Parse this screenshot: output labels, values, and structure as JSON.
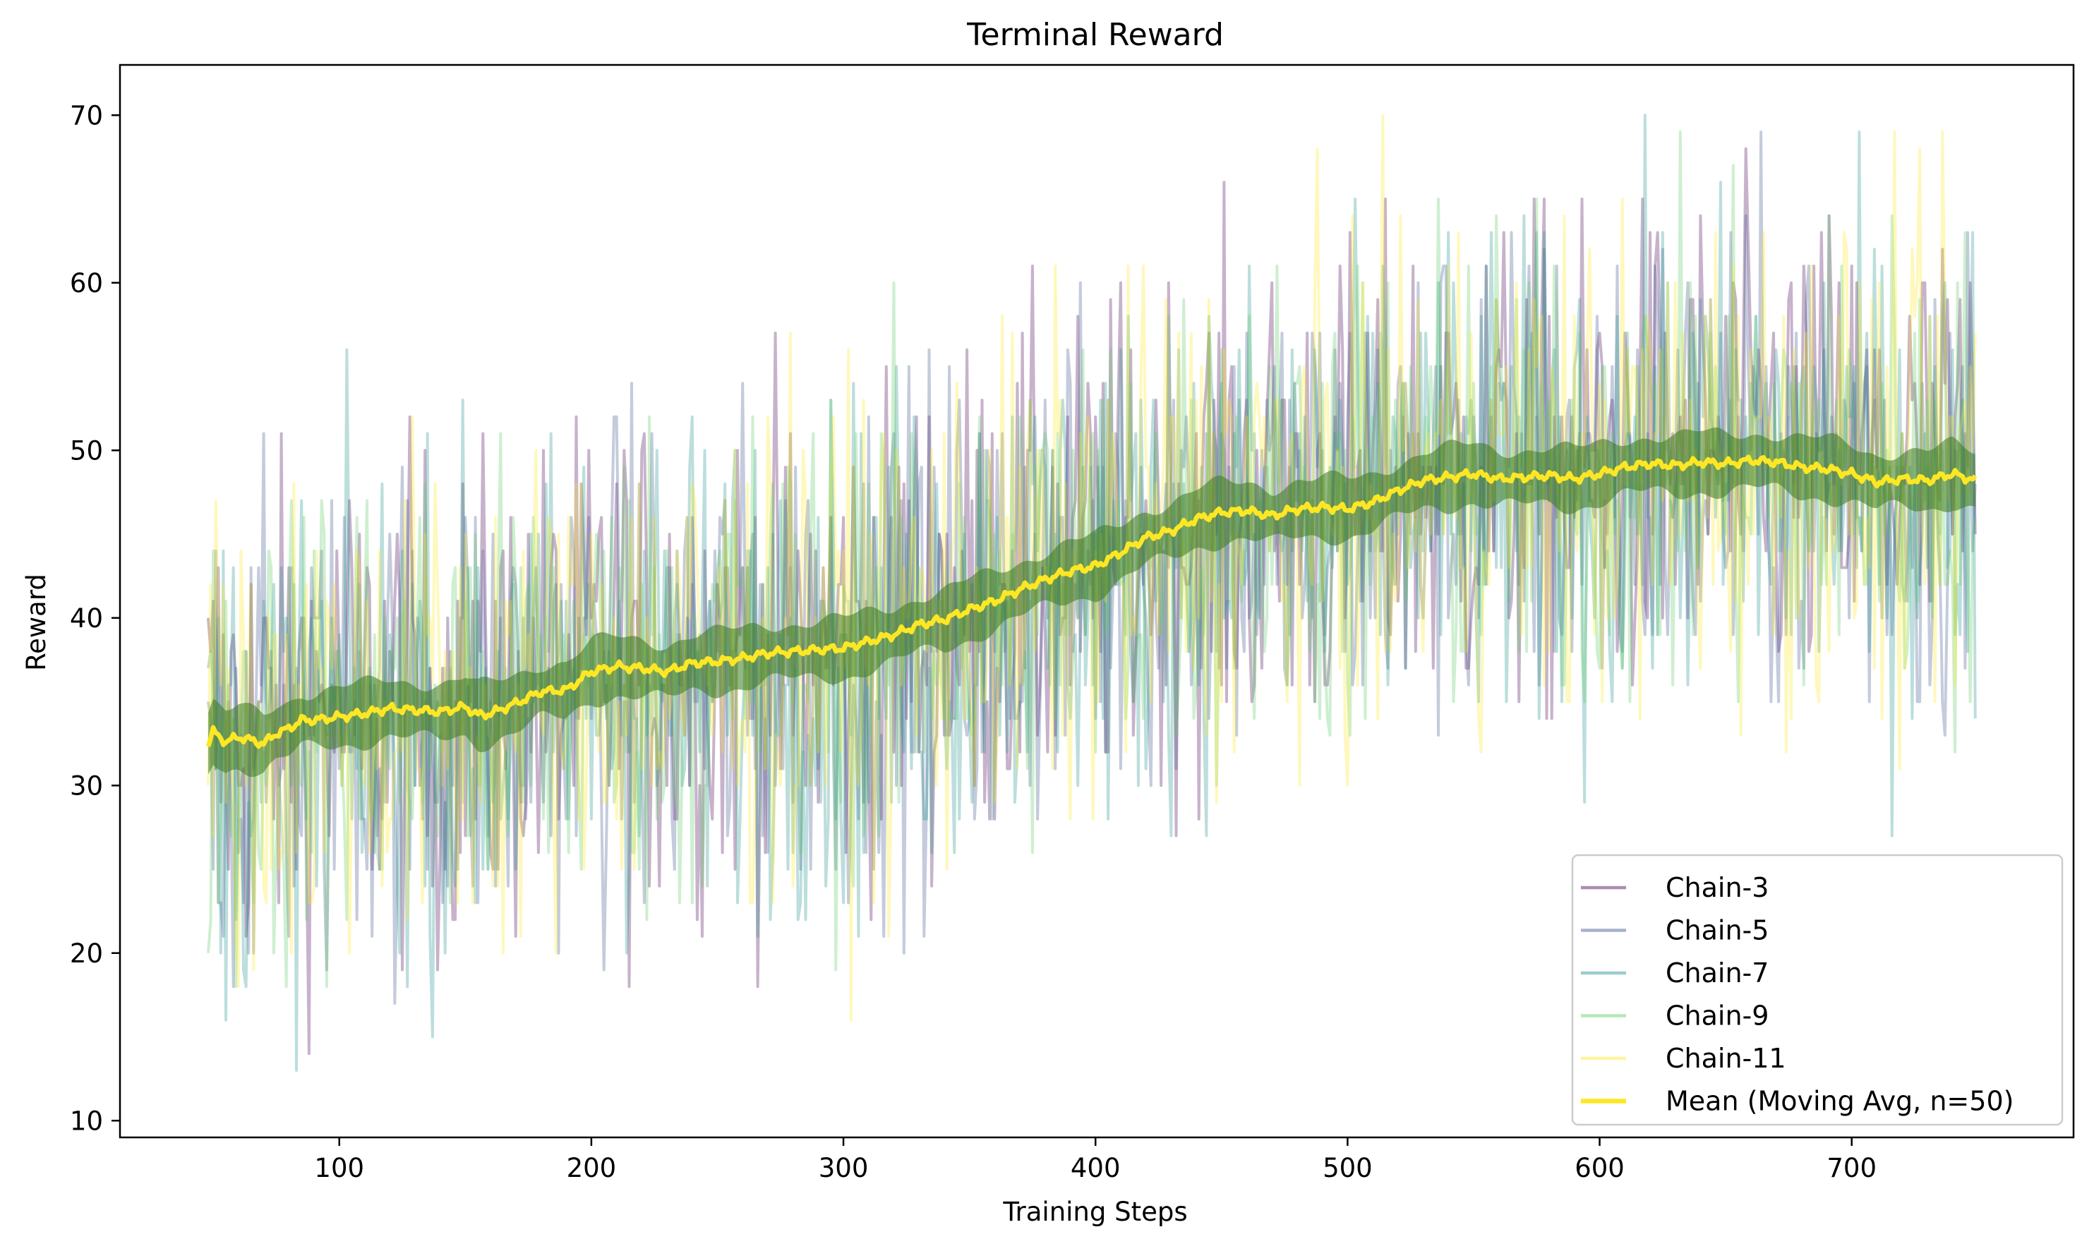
{
  "chart_data": {
    "type": "line",
    "title": "Terminal Reward",
    "xlabel": "Training Steps",
    "ylabel": "Reward",
    "xlim": [
      13,
      788
    ],
    "ylim": [
      9,
      73
    ],
    "xticks": [
      100,
      200,
      300,
      400,
      500,
      600,
      700
    ],
    "yticks": [
      10,
      20,
      30,
      40,
      50,
      60,
      70
    ],
    "x_range": [
      48,
      749
    ],
    "grid": false,
    "legend_position": "lower-right",
    "series": [
      {
        "name": "Chain-3",
        "color": "#440154",
        "opacity": 0.3,
        "mean_trend_offset": 0.3
      },
      {
        "name": "Chain-5",
        "color": "#3b528b",
        "opacity": 0.3,
        "mean_trend_offset": -0.2
      },
      {
        "name": "Chain-7",
        "color": "#21918c",
        "opacity": 0.3,
        "mean_trend_offset": -0.4
      },
      {
        "name": "Chain-9",
        "color": "#5ec962",
        "opacity": 0.3,
        "mean_trend_offset": 0.1
      },
      {
        "name": "Chain-11",
        "color": "#fde725",
        "opacity": 0.3,
        "mean_trend_offset": 0.2
      }
    ],
    "mean_series": {
      "name": "Mean (Moving Avg, n=50)",
      "color": "#fde725",
      "band_color": "#3b7a1f",
      "band_halfwidth": 1.7,
      "x": [
        48,
        50,
        55,
        60,
        65,
        70,
        75,
        80,
        85,
        90,
        95,
        100,
        110,
        120,
        130,
        140,
        150,
        155,
        160,
        170,
        180,
        190,
        200,
        210,
        220,
        230,
        240,
        250,
        260,
        270,
        280,
        290,
        300,
        310,
        320,
        330,
        340,
        350,
        360,
        370,
        380,
        390,
        400,
        410,
        420,
        430,
        440,
        450,
        460,
        470,
        480,
        490,
        500,
        510,
        520,
        530,
        540,
        550,
        560,
        570,
        580,
        590,
        600,
        610,
        620,
        630,
        640,
        650,
        660,
        670,
        680,
        690,
        700,
        710,
        720,
        730,
        740,
        749
      ],
      "y": [
        32.5,
        33.2,
        32.6,
        32.9,
        32.7,
        32.5,
        33.1,
        33.4,
        33.9,
        33.9,
        34.0,
        34.1,
        34.3,
        34.6,
        34.5,
        34.4,
        34.7,
        34.2,
        34.3,
        34.9,
        35.6,
        35.7,
        36.8,
        37.1,
        37.0,
        36.8,
        37.3,
        37.4,
        37.6,
        37.9,
        38.0,
        38.1,
        38.2,
        38.6,
        39.0,
        39.6,
        39.9,
        40.5,
        41.0,
        41.7,
        42.3,
        42.8,
        43.1,
        43.9,
        44.8,
        45.2,
        45.9,
        46.3,
        46.4,
        46.1,
        46.5,
        46.6,
        46.5,
        46.9,
        47.6,
        48.2,
        48.4,
        48.6,
        48.3,
        48.4,
        48.5,
        48.3,
        48.6,
        49.0,
        49.2,
        49.1,
        49.3,
        49.2,
        49.4,
        49.3,
        49.0,
        48.9,
        48.6,
        48.1,
        48.3,
        48.2,
        48.6,
        48.2
      ]
    }
  }
}
